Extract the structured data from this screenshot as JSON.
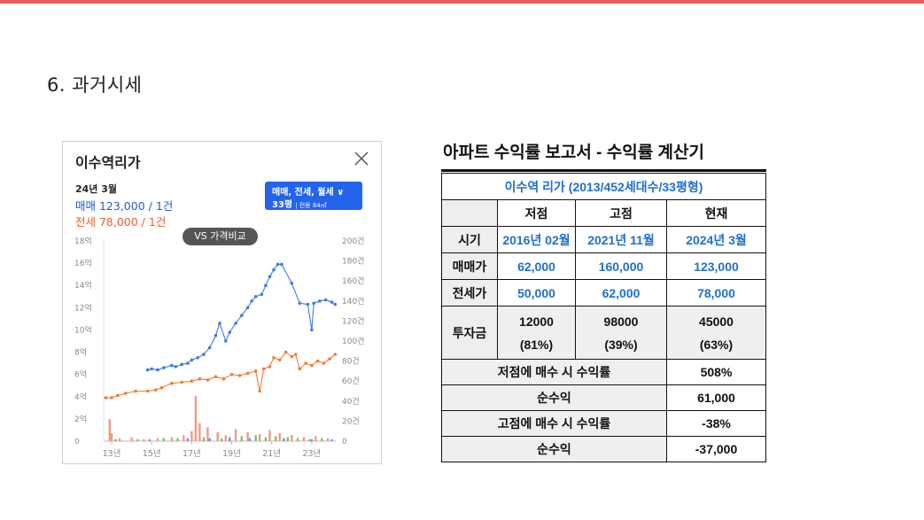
{
  "section": {
    "title": "6. 과거시세"
  },
  "card": {
    "title": "이수역리가",
    "period": "24년 3월",
    "sale": "매매 123,000 / 1건",
    "jeonse": "전세 78,000 / 1건",
    "filter_line1": "매매, 전세, 월세 ∨",
    "filter_line2": "33평",
    "filter_line2_small": "| 전용 84㎡",
    "compare_label": "VS 가격비교",
    "close_icon": "close-icon",
    "colors": {
      "sale": "#1f5ccf",
      "jeonse": "#ee5a2a",
      "filter_bg": "#2364ea"
    }
  },
  "chart_data": {
    "type": "line",
    "x_ticks": [
      "13년",
      "15년",
      "17년",
      "19년",
      "21년",
      "23년"
    ],
    "y_left_ticks": [
      "18억",
      "16억",
      "14억",
      "12억",
      "10억",
      "8억",
      "6억",
      "4억",
      "2억",
      "0"
    ],
    "y_right_ticks": [
      "200건",
      "180건",
      "160건",
      "140건",
      "120건",
      "100건",
      "80건",
      "60건",
      "40건",
      "20건",
      "0"
    ],
    "ylim_left": [
      0,
      18
    ],
    "ylim_right": [
      0,
      200
    ],
    "xlim": [
      2012.6,
      2024.2
    ],
    "series": [
      {
        "color": "#3d7be6",
        "points": [
          [
            2014.8,
            6.4
          ],
          [
            2015.0,
            6.5
          ],
          [
            2015.3,
            6.4
          ],
          [
            2015.6,
            6.6
          ],
          [
            2016.0,
            6.8
          ],
          [
            2016.2,
            6.7
          ],
          [
            2016.5,
            6.9
          ],
          [
            2016.8,
            7.0
          ],
          [
            2017.0,
            7.3
          ],
          [
            2017.3,
            7.5
          ],
          [
            2017.6,
            7.8
          ],
          [
            2017.9,
            8.4
          ],
          [
            2018.2,
            9.5
          ],
          [
            2018.4,
            10.6
          ],
          [
            2018.7,
            9.0
          ],
          [
            2018.9,
            9.8
          ],
          [
            2019.2,
            10.6
          ],
          [
            2019.5,
            11.3
          ],
          [
            2019.8,
            12.0
          ],
          [
            2020.0,
            12.6
          ],
          [
            2020.2,
            13.0
          ],
          [
            2020.5,
            13.2
          ],
          [
            2020.7,
            14.0
          ],
          [
            2020.9,
            14.8
          ],
          [
            2021.1,
            15.4
          ],
          [
            2021.3,
            15.9
          ],
          [
            2021.5,
            15.9
          ],
          [
            2022.0,
            14.2
          ],
          [
            2022.4,
            12.4
          ],
          [
            2022.8,
            12.3
          ],
          [
            2023.0,
            10.0
          ],
          [
            2023.1,
            12.4
          ],
          [
            2023.4,
            12.6
          ],
          [
            2023.7,
            12.7
          ],
          [
            2024.0,
            12.5
          ],
          [
            2024.17,
            12.3
          ]
        ]
      },
      {
        "color": "#f07c3a",
        "points": [
          [
            2012.7,
            3.9
          ],
          [
            2013.0,
            3.9
          ],
          [
            2013.3,
            4.1
          ],
          [
            2013.7,
            4.3
          ],
          [
            2014.2,
            4.5
          ],
          [
            2014.8,
            4.5
          ],
          [
            2015.2,
            4.6
          ],
          [
            2015.5,
            4.8
          ],
          [
            2016.0,
            5.2
          ],
          [
            2016.5,
            5.3
          ],
          [
            2017.0,
            5.4
          ],
          [
            2017.4,
            5.6
          ],
          [
            2017.8,
            5.5
          ],
          [
            2018.2,
            5.8
          ],
          [
            2018.6,
            5.6
          ],
          [
            2019.0,
            6.0
          ],
          [
            2019.4,
            5.9
          ],
          [
            2019.8,
            6.1
          ],
          [
            2020.2,
            6.3
          ],
          [
            2020.4,
            4.5
          ],
          [
            2020.6,
            6.5
          ],
          [
            2020.9,
            6.7
          ],
          [
            2021.1,
            7.5
          ],
          [
            2021.4,
            7.3
          ],
          [
            2021.7,
            8.0
          ],
          [
            2022.0,
            7.6
          ],
          [
            2022.2,
            7.8
          ],
          [
            2022.4,
            6.5
          ],
          [
            2022.7,
            7.0
          ],
          [
            2023.0,
            6.8
          ],
          [
            2023.3,
            7.2
          ],
          [
            2023.6,
            7.0
          ],
          [
            2023.9,
            7.4
          ],
          [
            2024.17,
            7.8
          ]
        ]
      }
    ],
    "volume": [
      {
        "color": "#f29a84",
        "points": [
          [
            2012.9,
            22
          ],
          [
            2013.0,
            8
          ],
          [
            2013.4,
            3
          ],
          [
            2014.0,
            4
          ],
          [
            2014.6,
            2
          ],
          [
            2015.3,
            3
          ],
          [
            2016.0,
            4
          ],
          [
            2016.6,
            6
          ],
          [
            2017.0,
            10
          ],
          [
            2017.2,
            45
          ],
          [
            2017.4,
            18
          ],
          [
            2017.8,
            14
          ],
          [
            2018.3,
            9
          ],
          [
            2018.7,
            6
          ],
          [
            2019.2,
            12
          ],
          [
            2019.8,
            9
          ],
          [
            2020.4,
            7
          ],
          [
            2020.9,
            11
          ],
          [
            2021.4,
            8
          ],
          [
            2022.0,
            6
          ],
          [
            2022.6,
            4
          ],
          [
            2023.2,
            5
          ],
          [
            2023.8,
            3
          ]
        ]
      },
      {
        "color": "#7fbf6a",
        "points": [
          [
            2013.2,
            2
          ],
          [
            2014.3,
            2
          ],
          [
            2015.6,
            3
          ],
          [
            2016.3,
            3
          ],
          [
            2017.6,
            4
          ],
          [
            2018.5,
            3
          ],
          [
            2019.5,
            5
          ],
          [
            2020.2,
            6
          ],
          [
            2020.7,
            4
          ],
          [
            2021.2,
            5
          ],
          [
            2021.8,
            4
          ],
          [
            2022.3,
            3
          ],
          [
            2022.9,
            2
          ],
          [
            2023.5,
            3
          ]
        ]
      },
      {
        "color": "#7a8fe0",
        "points": [
          [
            2014.9,
            2
          ],
          [
            2016.8,
            3
          ],
          [
            2017.9,
            3
          ],
          [
            2018.9,
            4
          ],
          [
            2019.9,
            3
          ],
          [
            2021.6,
            3
          ],
          [
            2023.0,
            2
          ],
          [
            2024.0,
            2
          ]
        ]
      }
    ]
  },
  "report": {
    "title": "아파트 수익률 보고서 - 수익률 계산기",
    "apt": "이수역 리가 (2013/452세대수/33평형)",
    "headers": [
      "저점",
      "고점",
      "현재"
    ],
    "rows": [
      {
        "label": "시기",
        "values": [
          "2016년 02월",
          "2021년 11월",
          "2024년 3월"
        ]
      },
      {
        "label": "매매가",
        "values": [
          "62,000",
          "160,000",
          "123,000"
        ]
      },
      {
        "label": "전세가",
        "values": [
          "50,000",
          "62,000",
          "78,000"
        ]
      }
    ],
    "invest": {
      "label": "투자금",
      "values": [
        "12000",
        "98000",
        "45000"
      ],
      "pcts": [
        "(81%)",
        "(39%)",
        "(63%)"
      ]
    },
    "summary": [
      {
        "label": "저점에 매수 시 수익률",
        "value": "508%"
      },
      {
        "label": "순수익",
        "value": "61,000"
      },
      {
        "label": "고점에 매수 시 수익률",
        "value": "-38%"
      },
      {
        "label": "순수익",
        "value": "-37,000"
      }
    ]
  }
}
